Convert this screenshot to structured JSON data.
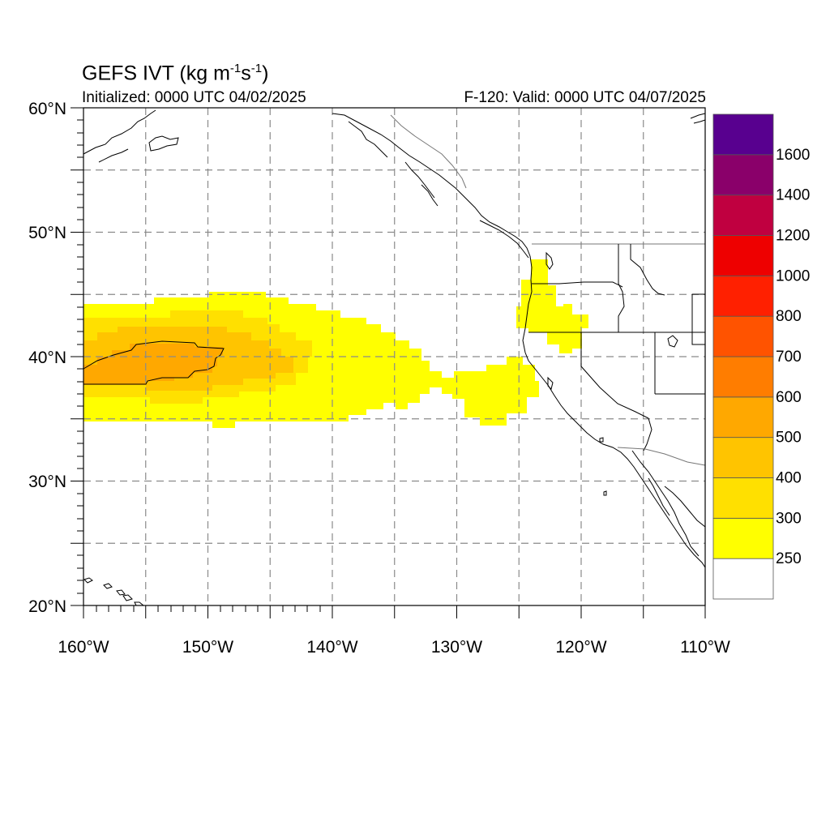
{
  "header": {
    "title": "GEFS IVT (kg m",
    "title_exp1": "-1",
    "title_mid": "s",
    "title_exp2": "-1",
    "title_end": ")",
    "initialized": "Initialized: 0000 UTC 04/02/2025",
    "valid": "F-120: Valid: 0000 UTC 04/07/2025"
  },
  "axes": {
    "lat_labels": [
      "60°N",
      "50°N",
      "40°N",
      "30°N",
      "20°N"
    ],
    "lon_labels": [
      "160°W",
      "150°W",
      "140°W",
      "130°W",
      "120°W",
      "110°W"
    ],
    "lat_range": [
      20,
      60
    ],
    "lon_range": [
      -160,
      -110
    ]
  },
  "colorbar": {
    "labels": [
      "250",
      "300",
      "400",
      "500",
      "600",
      "700",
      "800",
      "1000",
      "1200",
      "1400",
      "1600"
    ],
    "colors": [
      "#ffffff",
      "#ffff00",
      "#ffe000",
      "#ffc400",
      "#ffa800",
      "#ff7d00",
      "#ff5300",
      "#ff2000",
      "#ee0000",
      "#c00040",
      "#8a006a",
      "#58008f"
    ]
  },
  "chart_data": {
    "type": "heatmap",
    "title": "GEFS IVT (kg m-1s-1)",
    "xlabel": "",
    "ylabel": "",
    "xlim": [
      -160,
      -110
    ],
    "ylim": [
      20,
      60
    ],
    "levels": [
      250,
      300,
      400,
      500,
      600,
      700,
      800,
      1000,
      1200,
      1400,
      1600
    ],
    "grid": true,
    "contour_level": 500
  }
}
